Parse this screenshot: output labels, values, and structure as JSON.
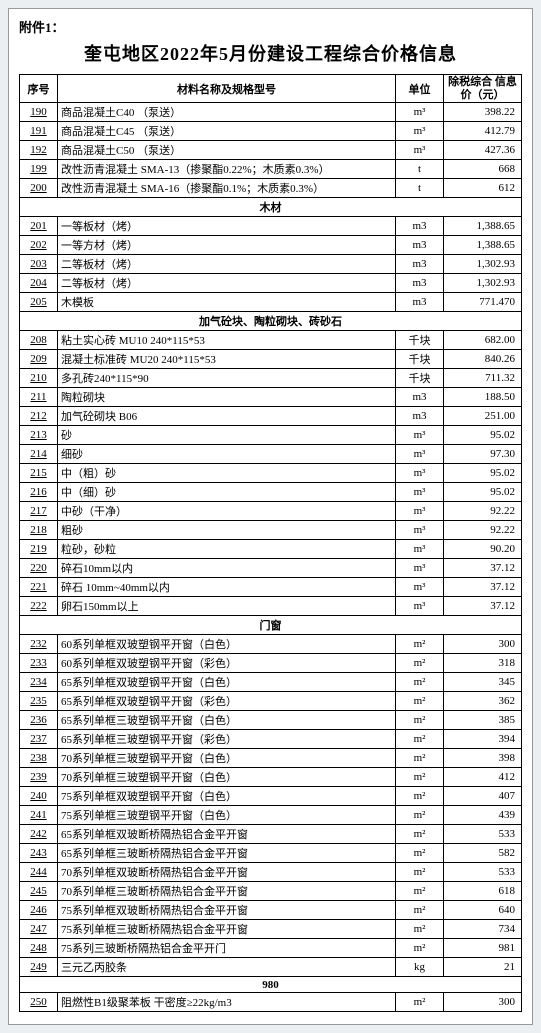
{
  "attachment_label": "附件1：",
  "title": "奎屯地区2022年5月份建设工程综合价格信息",
  "headers": {
    "seq": "序号",
    "name": "材料名称及规格型号",
    "unit": "单位",
    "price": "除税综合\n信息价（元）"
  },
  "blocks": [
    {
      "section": null,
      "rows": [
        {
          "seq": "190",
          "name": "商品混凝土C40 （泵送）",
          "unit": "m³",
          "price": "398.22"
        },
        {
          "seq": "191",
          "name": "商品混凝土C45 （泵送）",
          "unit": "m³",
          "price": "412.79"
        },
        {
          "seq": "192",
          "name": "商品混凝土C50 （泵送）",
          "unit": "m³",
          "price": "427.36"
        },
        {
          "seq": "199",
          "name": "改性沥青混凝土 SMA-13（掺聚酯0.22%；木质素0.3%）",
          "unit": "t",
          "price": "668"
        },
        {
          "seq": "200",
          "name": "改性沥青混凝土 SMA-16（掺聚酯0.1%；木质素0.3%）",
          "unit": "t",
          "price": "612"
        }
      ]
    },
    {
      "section": "木材",
      "rows": [
        {
          "seq": "201",
          "name": "一等板材（烤）",
          "unit": "m3",
          "price": "1,388.65"
        },
        {
          "seq": "202",
          "name": "一等方材（烤）",
          "unit": "m3",
          "price": "1,388.65"
        },
        {
          "seq": "203",
          "name": "二等板材（烤）",
          "unit": "m3",
          "price": "1,302.93"
        },
        {
          "seq": "204",
          "name": "二等板材（烤）",
          "unit": "m3",
          "price": "1,302.93"
        },
        {
          "seq": "205",
          "name": "木模板",
          "unit": "m3",
          "price": "771.470"
        }
      ]
    },
    {
      "section": "加气砼块、陶粒砌块、砖砂石",
      "rows": [
        {
          "seq": "208",
          "name": "粘土实心砖   MU10      240*115*53",
          "unit": "千块",
          "price": "682.00"
        },
        {
          "seq": "209",
          "name": "混凝土标准砖   MU20    240*115*53",
          "unit": "千块",
          "price": "840.26"
        },
        {
          "seq": "210",
          "name": "多孔砖240*115*90",
          "unit": "千块",
          "price": "711.32"
        },
        {
          "seq": "211",
          "name": "陶粒砌块",
          "unit": "m3",
          "price": "188.50"
        },
        {
          "seq": "212",
          "name": "加气砼砌块  B06",
          "unit": "m3",
          "price": "251.00"
        },
        {
          "seq": "213",
          "name": "砂",
          "unit": "m³",
          "price": "95.02"
        },
        {
          "seq": "214",
          "name": "细砂",
          "unit": "m³",
          "price": "97.30"
        },
        {
          "seq": "215",
          "name": "中（粗）砂",
          "unit": "m³",
          "price": "95.02"
        },
        {
          "seq": "216",
          "name": "中（细）砂",
          "unit": "m³",
          "price": "95.02"
        },
        {
          "seq": "217",
          "name": "中砂（干净）",
          "unit": "m³",
          "price": "92.22"
        },
        {
          "seq": "218",
          "name": "粗砂",
          "unit": "m³",
          "price": "92.22"
        },
        {
          "seq": "219",
          "name": "粒砂，砂粒",
          "unit": "m³",
          "price": "90.20"
        },
        {
          "seq": "220",
          "name": "碎石10mm以内",
          "unit": "m³",
          "price": "37.12"
        },
        {
          "seq": "221",
          "name": "碎石  10mm~40mm以内",
          "unit": "m³",
          "price": "37.12"
        },
        {
          "seq": "222",
          "name": "卵石150mm以上",
          "unit": "m³",
          "price": "37.12"
        }
      ]
    },
    {
      "section": "门窗",
      "rows": [
        {
          "seq": "232",
          "name": "60系列单框双玻塑钢平开窗（白色）",
          "unit": "m²",
          "price": "300"
        },
        {
          "seq": "233",
          "name": "60系列单框双玻塑钢平开窗（彩色）",
          "unit": "m²",
          "price": "318"
        },
        {
          "seq": "234",
          "name": "65系列单框双玻塑钢平开窗（白色）",
          "unit": "m²",
          "price": "345"
        },
        {
          "seq": "235",
          "name": "65系列单框双玻塑钢平开窗（彩色）",
          "unit": "m²",
          "price": "362"
        },
        {
          "seq": "236",
          "name": "65系列单框三玻塑钢平开窗（白色）",
          "unit": "m²",
          "price": "385"
        },
        {
          "seq": "237",
          "name": "65系列单框三玻塑钢平开窗（彩色）",
          "unit": "m²",
          "price": "394"
        },
        {
          "seq": "238",
          "name": "70系列单框三玻塑钢平开窗（白色）",
          "unit": "m²",
          "price": "398"
        },
        {
          "seq": "239",
          "name": "70系列单框三玻塑钢平开窗（白色）",
          "unit": "m²",
          "price": "412"
        },
        {
          "seq": "240",
          "name": "75系列单框双玻塑钢平开窗（白色）",
          "unit": "m²",
          "price": "407"
        },
        {
          "seq": "241",
          "name": "75系列单框三玻塑钢平开窗（白色）",
          "unit": "m²",
          "price": "439"
        },
        {
          "seq": "242",
          "name": "65系列单框双玻断桥隔热铝合金平开窗",
          "unit": "m²",
          "price": "533"
        },
        {
          "seq": "243",
          "name": "65系列单框三玻断桥隔热铝合金平开窗",
          "unit": "m²",
          "price": "582"
        },
        {
          "seq": "244",
          "name": "70系列单框双玻断桥隔热铝合金平开窗",
          "unit": "m²",
          "price": "533"
        },
        {
          "seq": "245",
          "name": "70系列单框三玻断桥隔热铝合金平开窗",
          "unit": "m²",
          "price": "618"
        },
        {
          "seq": "246",
          "name": "75系列单框双玻断桥隔热铝合金平开窗",
          "unit": "m²",
          "price": "640"
        },
        {
          "seq": "247",
          "name": "75系列单框三玻断桥隔热铝合金平开窗",
          "unit": "m²",
          "price": "734"
        },
        {
          "seq": "248",
          "name": "75系列三玻断桥隔热铝合金平开门",
          "unit": "m²",
          "price": "981"
        },
        {
          "seq": "249",
          "name": "三元乙丙胶条",
          "unit": "kg",
          "price": "21"
        }
      ]
    },
    {
      "section": "980",
      "rows": [
        {
          "seq": "250",
          "name": "阻燃性B1级聚苯板 干密度≥22kg/m3",
          "unit": "m²",
          "price": "300"
        }
      ]
    }
  ]
}
